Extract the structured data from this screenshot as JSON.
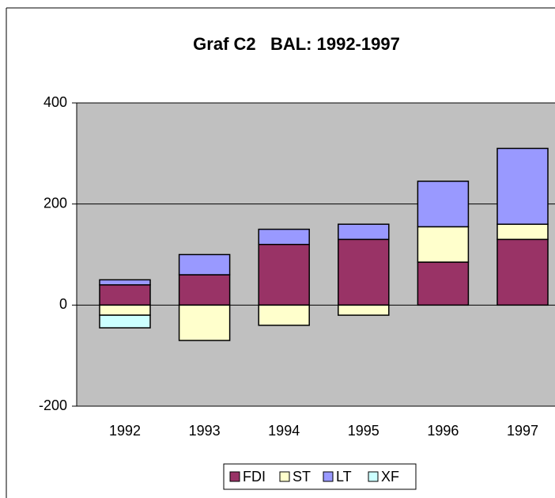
{
  "chart_data": {
    "type": "stacked_bar",
    "title": "Graf C2   BAL: 1992-1997",
    "categories": [
      "1992",
      "1993",
      "1994",
      "1995",
      "1996",
      "1997"
    ],
    "series": [
      {
        "name": "FDI",
        "color": "#993366",
        "values": [
          40,
          60,
          120,
          130,
          85,
          130
        ]
      },
      {
        "name": "ST",
        "color": "#ffffcc",
        "values": [
          -20,
          -70,
          -40,
          -20,
          70,
          30
        ]
      },
      {
        "name": "LT",
        "color": "#9999ff",
        "values": [
          10,
          40,
          30,
          30,
          90,
          150
        ]
      },
      {
        "name": "XF",
        "color": "#ccffff",
        "values": [
          -25,
          0,
          0,
          0,
          0,
          0
        ]
      }
    ],
    "ylim": [
      -200,
      400
    ],
    "yticks": [
      -200,
      0,
      200,
      400
    ],
    "grid": true,
    "legend": "bottom"
  }
}
